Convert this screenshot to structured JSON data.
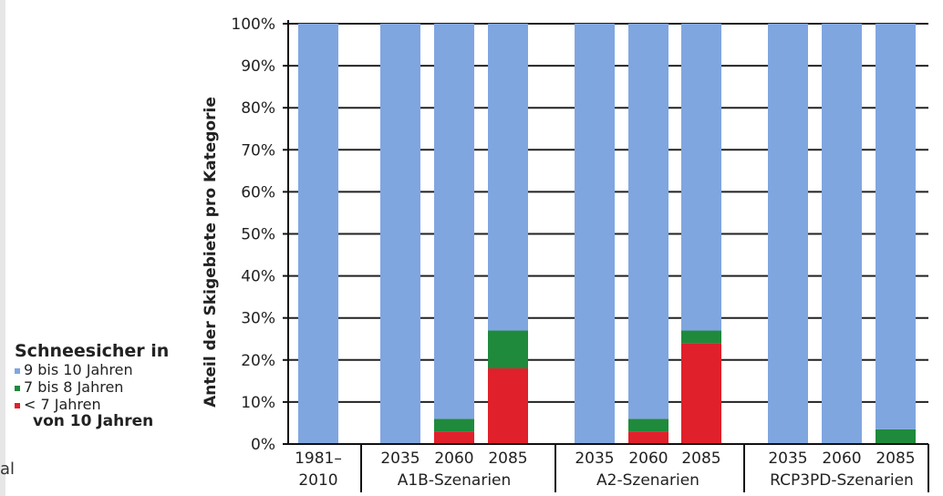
{
  "stray_text": "al",
  "legend": {
    "title": "Schneesicher in",
    "items": [
      {
        "label": "9 bis 10 Jahren",
        "color": "#80a6e0"
      },
      {
        "label": "7 bis 8 Jahren",
        "color": "#1f8a3c"
      },
      {
        "label": "< 7 Jahren",
        "color": "#e0202a"
      }
    ],
    "footer": "von 10 Jahren"
  },
  "chart_data": {
    "type": "bar",
    "stacked": true,
    "ylabel": "Anteil der Skigebiete pro Kategorie",
    "ylim": [
      0,
      100
    ],
    "yticks": [
      "0%",
      "10%",
      "20%",
      "30%",
      "40%",
      "50%",
      "60%",
      "70%",
      "80%",
      "90%",
      "100%"
    ],
    "groups": [
      {
        "label_line1": "1981–",
        "label_line2": "2010",
        "bars": [
          {
            "x": "",
            "red": 0,
            "green": 0,
            "blue": 100
          }
        ]
      },
      {
        "label_line1": "",
        "label_line2": "A1B-Szenarien",
        "bars": [
          {
            "x": "2035",
            "red": 0,
            "green": 0,
            "blue": 100
          },
          {
            "x": "2060",
            "red": 3,
            "green": 3,
            "blue": 94
          },
          {
            "x": "2085",
            "red": 18,
            "green": 9,
            "blue": 73
          }
        ]
      },
      {
        "label_line1": "",
        "label_line2": "A2-Szenarien",
        "bars": [
          {
            "x": "2035",
            "red": 0,
            "green": 0,
            "blue": 100
          },
          {
            "x": "2060",
            "red": 3,
            "green": 3,
            "blue": 94
          },
          {
            "x": "2085",
            "red": 24,
            "green": 3,
            "blue": 73
          }
        ]
      },
      {
        "label_line1": "",
        "label_line2": "RCP3PD-Szenarien",
        "bars": [
          {
            "x": "2035",
            "red": 0,
            "green": 0,
            "blue": 100
          },
          {
            "x": "2060",
            "red": 0,
            "green": 0,
            "blue": 100
          },
          {
            "x": "2085",
            "red": 0,
            "green": 3.5,
            "blue": 96.5
          }
        ]
      }
    ],
    "colors": {
      "blue": "#80a6e0",
      "green": "#1f8a3c",
      "red": "#e0202a",
      "axis": "#111111"
    }
  }
}
